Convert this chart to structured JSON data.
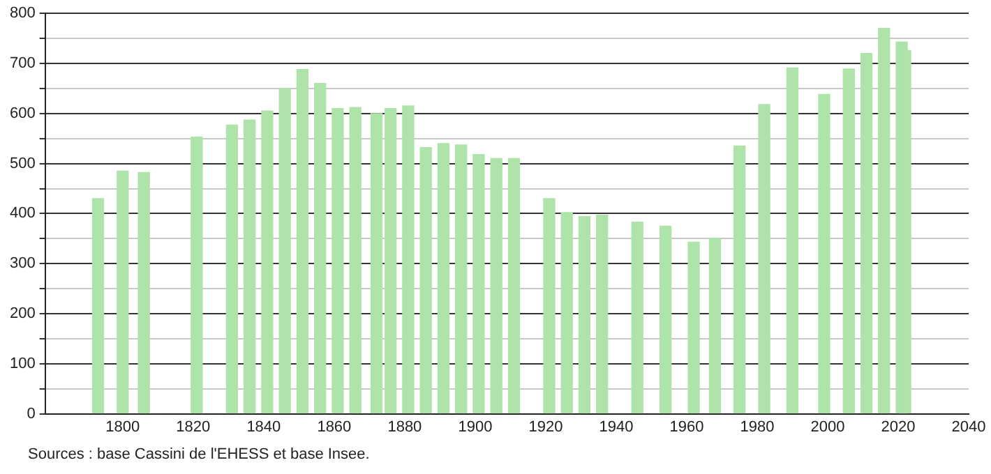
{
  "chart_data": {
    "type": "bar",
    "x": [
      1793,
      1800,
      1806,
      1821,
      1831,
      1836,
      1841,
      1846,
      1851,
      1856,
      1861,
      1866,
      1872,
      1876,
      1881,
      1886,
      1891,
      1896,
      1901,
      1906,
      1911,
      1921,
      1926,
      1931,
      1936,
      1946,
      1954,
      1962,
      1968,
      1975,
      1982,
      1990,
      1999,
      2006,
      2011,
      2016,
      2021,
      2022
    ],
    "values": [
      430,
      485,
      482,
      553,
      577,
      587,
      605,
      650,
      688,
      660,
      610,
      612,
      600,
      610,
      615,
      532,
      540,
      537,
      518,
      510,
      510,
      430,
      402,
      394,
      397,
      383,
      375,
      343,
      351,
      535,
      618,
      691,
      638,
      689,
      720,
      770,
      743,
      726
    ],
    "color": "#aee3a9",
    "xlim": [
      1778,
      2040
    ],
    "xticks": [
      1800,
      1820,
      1840,
      1860,
      1880,
      1900,
      1920,
      1940,
      1960,
      1980,
      2000,
      2020,
      2040
    ],
    "ylim": [
      0,
      800
    ],
    "yticks": [
      0,
      {
        "value": 50,
        "label": null
      },
      100,
      {
        "value": 150,
        "label": null
      },
      200,
      {
        "value": 250,
        "label": null
      },
      300,
      {
        "value": 350,
        "label": null
      },
      400,
      {
        "value": 450,
        "label": null
      },
      500,
      {
        "value": 550,
        "label": null
      },
      600,
      {
        "value": 650,
        "label": null
      },
      700,
      {
        "value": 750,
        "label": null
      },
      800
    ],
    "grid": "y",
    "annotations": [
      "Sources : base Cassini de l'EHESS et base Insee."
    ]
  }
}
